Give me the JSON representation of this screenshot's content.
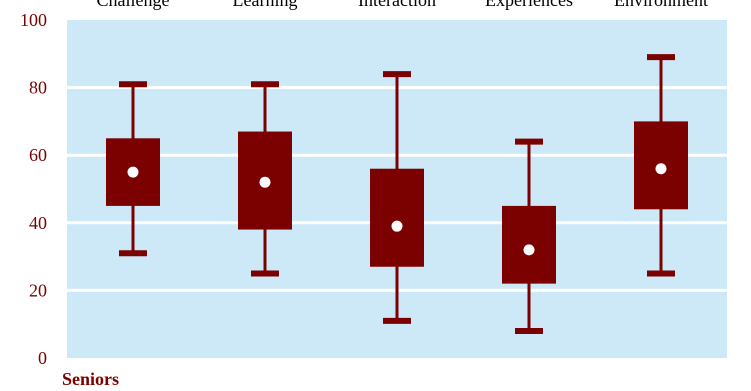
{
  "chart_data": {
    "type": "box",
    "categories": [
      "Challenge",
      "Learning",
      "Interaction",
      "Experiences",
      "Environment"
    ],
    "series": [
      {
        "min": [
          31,
          25,
          11,
          8,
          25
        ],
        "q1": [
          45,
          38,
          27,
          22,
          44
        ],
        "median": [
          55,
          52,
          39,
          32,
          56
        ],
        "q3": [
          65,
          67,
          56,
          45,
          70
        ],
        "max": [
          81,
          81,
          84,
          64,
          89
        ]
      }
    ],
    "yticks": [
      0,
      20,
      40,
      60,
      80,
      100
    ],
    "ylim": [
      0,
      100
    ],
    "grid": true,
    "panel_label": "Seniors",
    "colors": {
      "box": "#7b0000",
      "plot_background": "#cde9f7",
      "grid": "#ffffff",
      "median_marker": "#ffffff",
      "tick_text": "#7b0000",
      "category_text": "#000000"
    }
  }
}
